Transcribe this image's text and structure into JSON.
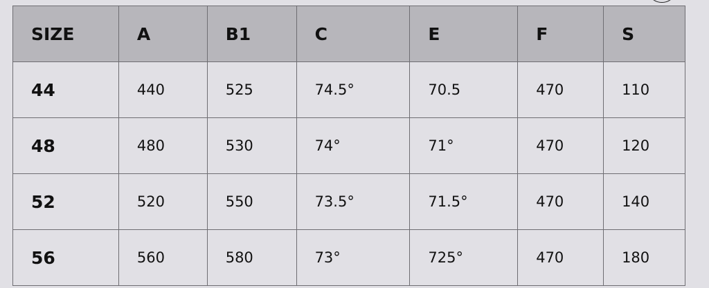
{
  "headers": [
    "SIZE",
    "A",
    "B1",
    "C",
    "E",
    "F",
    "S"
  ],
  "rows": [
    [
      "44",
      "440",
      "525",
      "74.5°",
      "70.5",
      "470",
      "110"
    ],
    [
      "48",
      "480",
      "530",
      "74°",
      "71°",
      "470",
      "120"
    ],
    [
      "52",
      "520",
      "550",
      "73.5°",
      "71.5°",
      "470",
      "140"
    ],
    [
      "56",
      "560",
      "580",
      "73°",
      "725°",
      "470",
      "180"
    ]
  ]
}
